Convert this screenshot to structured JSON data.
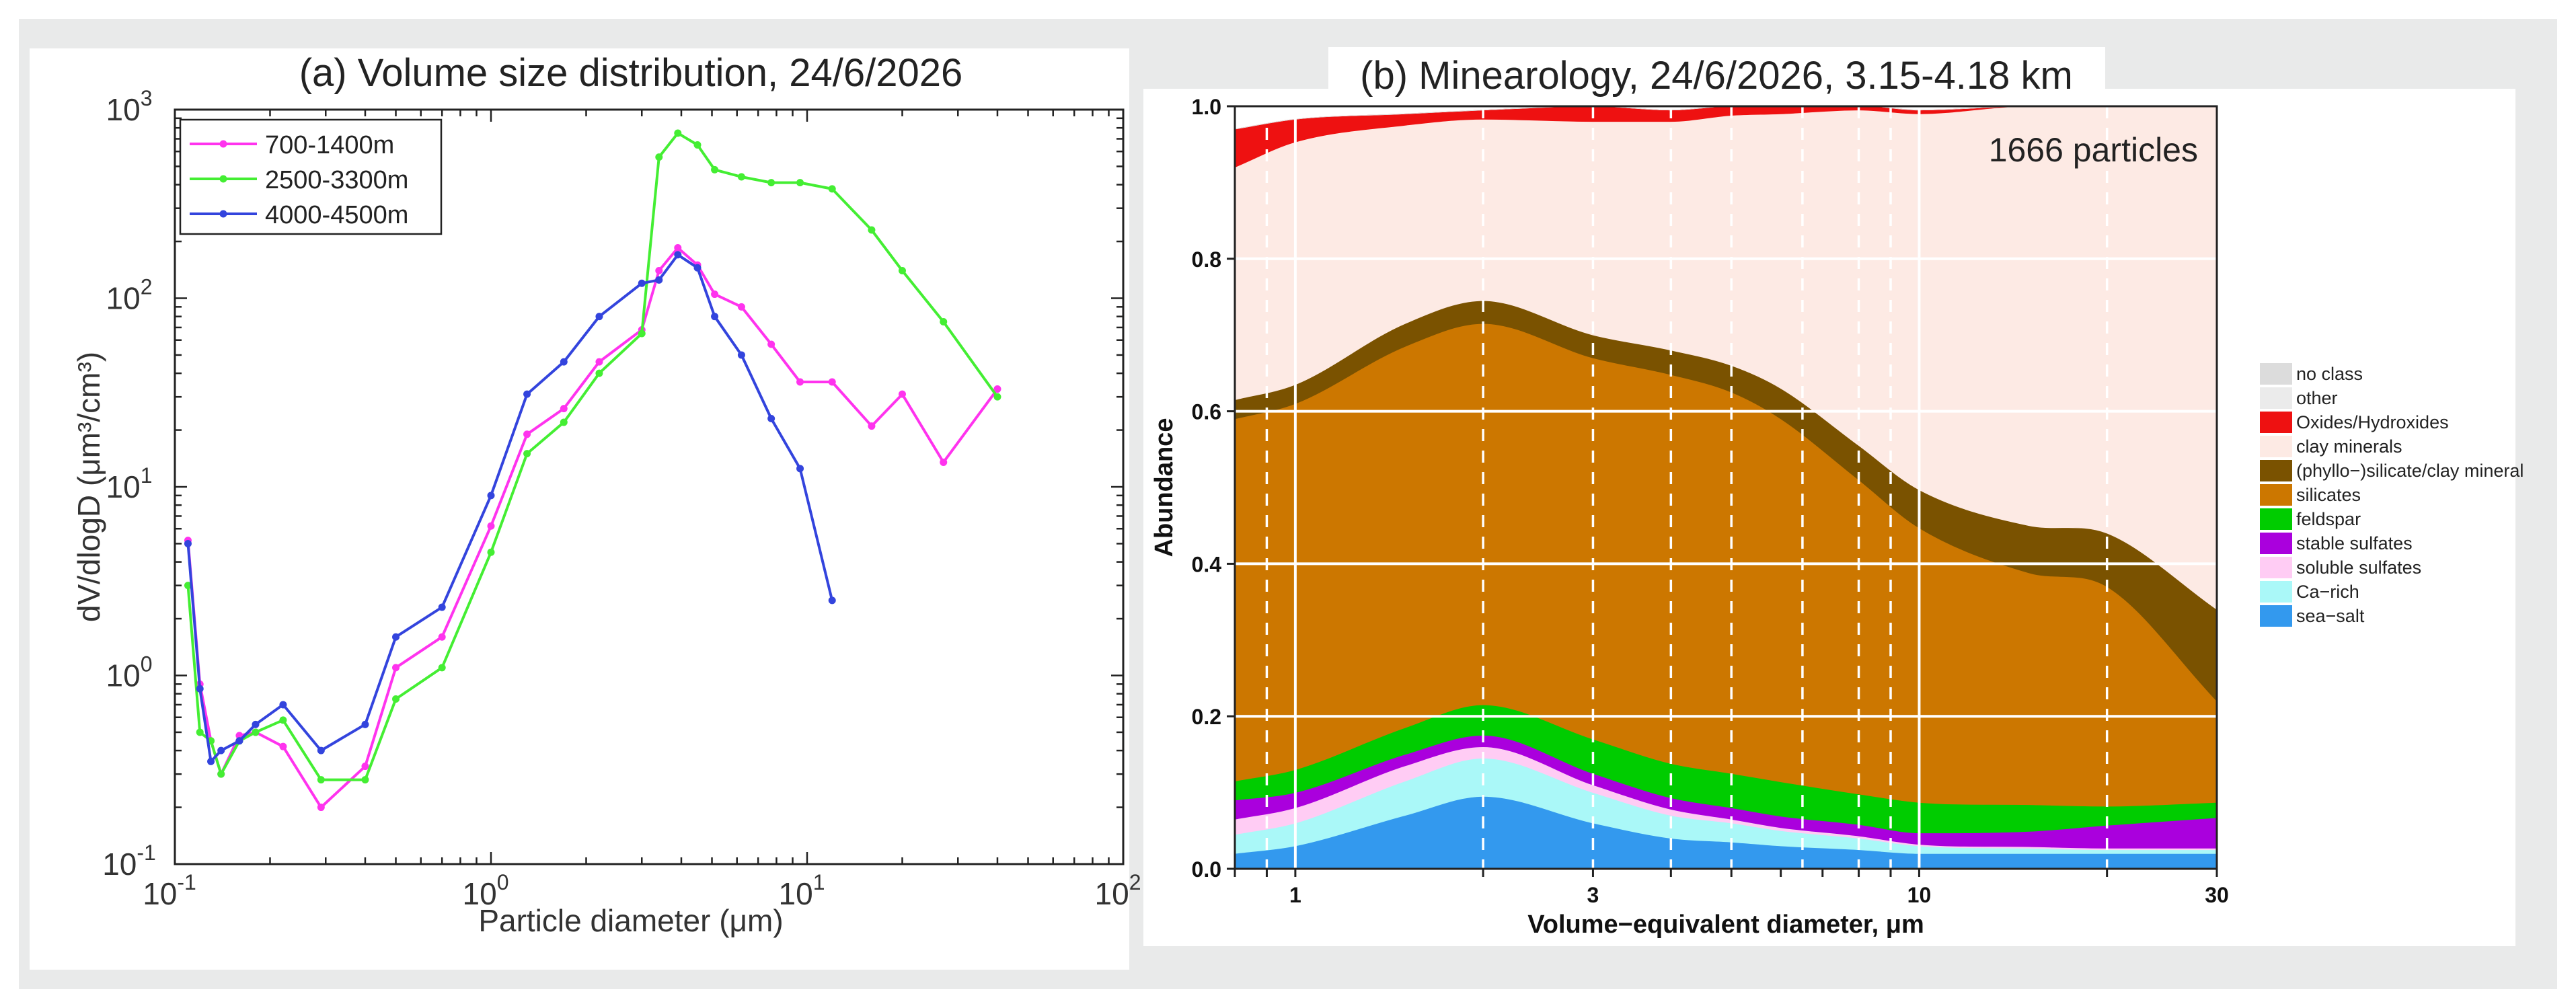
{
  "chart_data": [
    {
      "type": "line",
      "title": "(a) Volume size distribution, 24/6/2026",
      "xlabel": "Particle diameter (μm)",
      "ylabel": "dV/dlogD (μm³/cm³)",
      "xscale": "log",
      "yscale": "log",
      "xlim": [
        0.1,
        100
      ],
      "ylim": [
        0.1,
        1000
      ],
      "x_ticks": [
        {
          "base": "10",
          "exp": "-1"
        },
        {
          "base": "10",
          "exp": "0"
        },
        {
          "base": "10",
          "exp": "1"
        },
        {
          "base": "10",
          "exp": "2"
        }
      ],
      "y_ticks": [
        {
          "base": "10",
          "exp": "-1"
        },
        {
          "base": "10",
          "exp": "0"
        },
        {
          "base": "10",
          "exp": "1"
        },
        {
          "base": "10",
          "exp": "2"
        },
        {
          "base": "10",
          "exp": "3"
        }
      ],
      "legend_position": "top-left",
      "series": [
        {
          "name": "700-1400m",
          "color": "#ff33ee",
          "x": [
            0.11,
            0.12,
            0.13,
            0.14,
            0.16,
            0.18,
            0.22,
            0.29,
            0.4,
            0.5,
            0.7,
            1.0,
            1.3,
            1.7,
            2.2,
            3.0,
            3.4,
            3.9,
            4.5,
            5.1,
            6.2,
            7.7,
            9.5,
            12.0,
            16.0,
            20.0,
            27.0,
            40.0
          ],
          "y": [
            5.2,
            0.9,
            0.45,
            0.3,
            0.48,
            0.5,
            0.42,
            0.2,
            0.33,
            1.1,
            1.6,
            6.2,
            19.0,
            26.0,
            46.0,
            68.0,
            140.0,
            185.0,
            150.0,
            105.0,
            90.0,
            57.0,
            36.0,
            36.0,
            21.0,
            31.0,
            13.5,
            33.0
          ]
        },
        {
          "name": "2500-3300m",
          "color": "#44ee33",
          "x": [
            0.11,
            0.12,
            0.13,
            0.14,
            0.16,
            0.18,
            0.22,
            0.29,
            0.4,
            0.5,
            0.7,
            1.0,
            1.3,
            1.7,
            2.2,
            3.0,
            3.4,
            3.9,
            4.5,
            5.1,
            6.2,
            7.7,
            9.5,
            12.0,
            16.0,
            20.0,
            27.0,
            40.0
          ],
          "y": [
            3.0,
            0.5,
            0.45,
            0.3,
            0.45,
            0.5,
            0.58,
            0.28,
            0.28,
            0.75,
            1.1,
            4.5,
            15.0,
            22.0,
            40.0,
            65.0,
            560.0,
            750.0,
            650.0,
            480.0,
            440.0,
            410.0,
            410.0,
            380.0,
            230.0,
            140.0,
            75.0,
            30.0
          ]
        },
        {
          "name": "4000-4500m",
          "color": "#3344dd",
          "x": [
            0.11,
            0.12,
            0.13,
            0.14,
            0.16,
            0.18,
            0.22,
            0.29,
            0.4,
            0.5,
            0.7,
            1.0,
            1.3,
            1.7,
            2.2,
            3.0,
            3.4,
            3.9,
            4.5,
            5.1,
            6.2,
            7.7,
            9.5,
            12.0
          ],
          "y": [
            5.0,
            0.85,
            0.35,
            0.4,
            0.45,
            0.55,
            0.7,
            0.4,
            0.55,
            1.6,
            2.3,
            9.0,
            31.0,
            46.0,
            80.0,
            120.0,
            125.0,
            170.0,
            145.0,
            80.0,
            50.0,
            23.0,
            12.5,
            2.5
          ]
        }
      ]
    },
    {
      "type": "area",
      "title": "(b) Minearology, 24/6/2026, 3.15-4.18 km",
      "annotation": "1666 particles",
      "xlabel": "Volume−equivalent diameter, μm",
      "ylabel": "Abundance",
      "xscale": "log",
      "xlim": [
        0.8,
        30
      ],
      "ylim": [
        0,
        1
      ],
      "x_tick_labels": [
        "1",
        "3",
        "10",
        "30"
      ],
      "x_tick_values": [
        1,
        3,
        10,
        30
      ],
      "y_tick_labels": [
        "0.0",
        "0.2",
        "0.4",
        "0.6",
        "0.8",
        "1.0"
      ],
      "y_tick_values": [
        0,
        0.2,
        0.4,
        0.6,
        0.8,
        1.0
      ],
      "dashed_gridlines_x": [
        0.9,
        2.0,
        3.0,
        4.0,
        5.0,
        6.5,
        8.0,
        9.0,
        20.0
      ],
      "legend_position": "right",
      "x": [
        0.8,
        1.0,
        1.5,
        2.0,
        3.0,
        4.0,
        5.0,
        6.0,
        8.0,
        10.0,
        15.0,
        20.0,
        30.0
      ],
      "stacked_series": [
        {
          "name": "sea−salt",
          "color": "#3399ee",
          "values": [
            0.02,
            0.03,
            0.07,
            0.095,
            0.06,
            0.04,
            0.035,
            0.03,
            0.025,
            0.02,
            0.02,
            0.02,
            0.02
          ]
        },
        {
          "name": "Ca−rich",
          "color": "#aaf8f8",
          "values": [
            0.025,
            0.03,
            0.045,
            0.05,
            0.04,
            0.03,
            0.025,
            0.02,
            0.015,
            0.01,
            0.007,
            0.005,
            0.005
          ]
        },
        {
          "name": "soluble sulfates",
          "color": "#ffccf4",
          "values": [
            0.02,
            0.02,
            0.02,
            0.015,
            0.01,
            0.008,
            0.005,
            0.004,
            0.003,
            0.002,
            0.002,
            0.002,
            0.002
          ]
        },
        {
          "name": "stable sulfates",
          "color": "#aa00dd",
          "values": [
            0.025,
            0.02,
            0.015,
            0.015,
            0.015,
            0.015,
            0.015,
            0.015,
            0.015,
            0.015,
            0.02,
            0.03,
            0.04
          ]
        },
        {
          "name": "feldspar",
          "color": "#00cc00",
          "values": [
            0.025,
            0.03,
            0.035,
            0.04,
            0.045,
            0.045,
            0.045,
            0.045,
            0.04,
            0.04,
            0.035,
            0.025,
            0.02
          ]
        },
        {
          "name": "silicates",
          "color": "#cc7700",
          "values": [
            0.475,
            0.48,
            0.5,
            0.5,
            0.5,
            0.51,
            0.5,
            0.476,
            0.412,
            0.36,
            0.304,
            0.288,
            0.133
          ]
        },
        {
          "name": "(phyllo−)silicate/clay mineral",
          "color": "#7a5200",
          "values": [
            0.025,
            0.025,
            0.03,
            0.03,
            0.03,
            0.032,
            0.035,
            0.04,
            0.045,
            0.05,
            0.062,
            0.07,
            0.12
          ]
        },
        {
          "name": "clay minerals",
          "color": "#fdeae4",
          "values": [
            0.305,
            0.318,
            0.26,
            0.238,
            0.28,
            0.3,
            0.328,
            0.36,
            0.44,
            0.493,
            0.55,
            0.56,
            0.66
          ]
        },
        {
          "name": "Oxides/Hydroxides",
          "color": "#ee1111",
          "values": [
            0.05,
            0.03,
            0.015,
            0.012,
            0.02,
            0.015,
            0.012,
            0.01,
            0.006,
            0.005,
            0.0,
            0.0,
            0.0
          ]
        },
        {
          "name": "other",
          "color": "#ebebeb",
          "values": [
            0,
            0,
            0,
            0,
            0,
            0,
            0,
            0,
            0,
            0,
            0,
            0,
            0
          ]
        },
        {
          "name": "no class",
          "color": "#dcdcdc",
          "values": [
            0,
            0,
            0,
            0,
            0,
            0,
            0,
            0,
            0,
            0,
            0,
            0,
            0
          ]
        }
      ],
      "legend_entries": [
        {
          "name": "no class",
          "color": "#dcdcdc"
        },
        {
          "name": "other",
          "color": "#ebebeb"
        },
        {
          "name": "Oxides/Hydroxides",
          "color": "#ee1111"
        },
        {
          "name": "clay minerals",
          "color": "#fdeae4"
        },
        {
          "name": "(phyllo−)silicate/clay mineral",
          "color": "#7a5200"
        },
        {
          "name": "silicates",
          "color": "#cc7700"
        },
        {
          "name": "feldspar",
          "color": "#00cc00"
        },
        {
          "name": "stable sulfates",
          "color": "#aa00dd"
        },
        {
          "name": "soluble sulfates",
          "color": "#ffccf4"
        },
        {
          "name": "Ca−rich",
          "color": "#aaf8f8"
        },
        {
          "name": "sea−salt",
          "color": "#3399ee"
        }
      ]
    }
  ]
}
